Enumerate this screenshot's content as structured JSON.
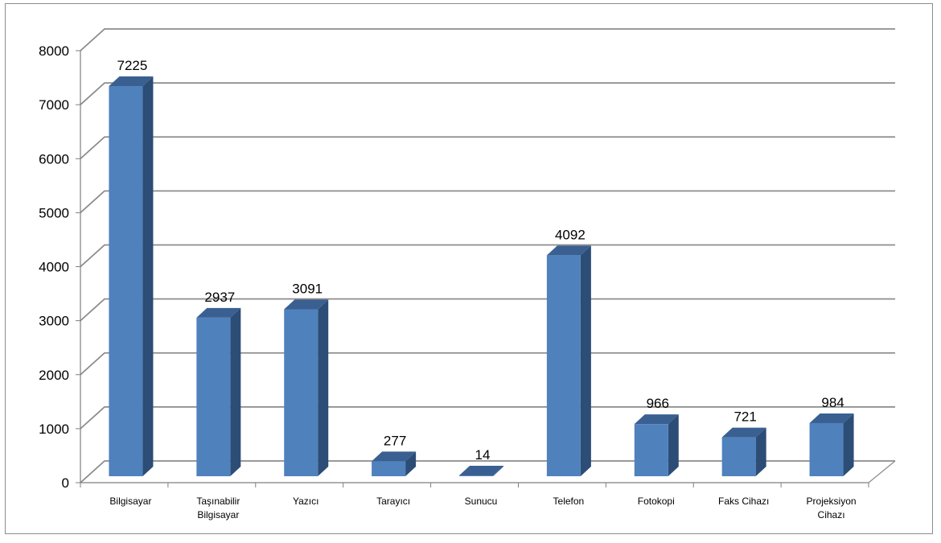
{
  "chart_data": {
    "type": "bar",
    "categories": [
      [
        "Bilgisayar"
      ],
      [
        "Taşınabilir",
        "Bilgisayar"
      ],
      [
        "Yazıcı"
      ],
      [
        "Tarayıcı"
      ],
      [
        "Sunucu"
      ],
      [
        "Telefon"
      ],
      [
        "Fotokopi"
      ],
      [
        "Faks Cihazı"
      ],
      [
        "Projeksiyon",
        "Cihazı"
      ]
    ],
    "values": [
      7225,
      2937,
      3091,
      277,
      14,
      4092,
      966,
      721,
      984
    ],
    "data_labels": [
      "7225",
      "2937",
      "3091",
      "277",
      "14",
      "4092",
      "966",
      "721",
      "984"
    ],
    "yticks": [
      "0",
      "1000",
      "2000",
      "3000",
      "4000",
      "5000",
      "6000",
      "7000",
      "8000"
    ],
    "ylim": [
      0,
      8000
    ],
    "title": "",
    "xlabel": "",
    "ylabel": "",
    "grid": true,
    "legend": "none",
    "style": "3d-column",
    "colors": {
      "bar_front": "#4f81bd",
      "bar_side": "#2c4d75",
      "bar_top": "#3a6091",
      "gridline": "#8c8c8c",
      "axis": "#7f7f7f",
      "frame": "#8c8c8c"
    }
  }
}
